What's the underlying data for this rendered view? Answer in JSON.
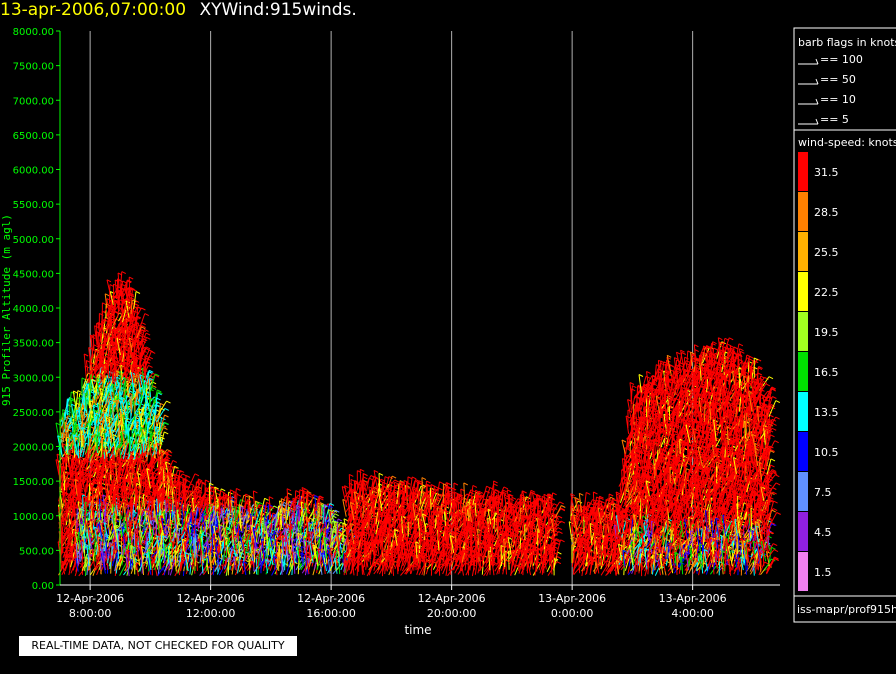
{
  "header": {
    "timestamp": "13-apr-2006,07:00:00",
    "title": "XYWind:915winds."
  },
  "qc_notice": "REAL-TIME DATA, NOT CHECKED FOR QUALITY",
  "legend": {
    "barb_title": "barb flags in knots",
    "barbs": [
      "== 100",
      "== 50",
      "== 10",
      "== 5"
    ],
    "speed_title": "wind-speed: knots",
    "colors": [
      {
        "label": "31.5",
        "color": "#ff0000"
      },
      {
        "label": "28.5",
        "color": "#ff8000"
      },
      {
        "label": "25.5",
        "color": "#ffb000"
      },
      {
        "label": "22.5",
        "color": "#ffff00"
      },
      {
        "label": "19.5",
        "color": "#a0ff20"
      },
      {
        "label": "16.5",
        "color": "#00e000"
      },
      {
        "label": "13.5",
        "color": "#00ffff"
      },
      {
        "label": "10.5",
        "color": "#0000ff"
      },
      {
        "label": "7.5",
        "color": "#6090ff"
      },
      {
        "label": "4.5",
        "color": "#9020e0"
      },
      {
        "label": "1.5",
        "color": "#f080f0"
      }
    ],
    "source": "iss-mapr/prof915h"
  },
  "chart_data": {
    "type": "scatter",
    "title": "XYWind:915winds.",
    "xlabel": "time",
    "ylabel": "915 Profiler Altitude (m agl)",
    "ylim": [
      0,
      8000
    ],
    "yticks": [
      "0.00",
      "500.00",
      "1000.00",
      "1500.00",
      "2000.00",
      "2500.00",
      "3000.00",
      "3500.00",
      "4000.00",
      "4500.00",
      "5000.00",
      "5500.00",
      "6000.00",
      "6500.00",
      "7000.00",
      "7500.00",
      "8000.00"
    ],
    "xticks": [
      {
        "date": "12-Apr-2006",
        "time": "8:00:00"
      },
      {
        "date": "12-Apr-2006",
        "time": "12:00:00"
      },
      {
        "date": "12-Apr-2006",
        "time": "16:00:00"
      },
      {
        "date": "12-Apr-2006",
        "time": "20:00:00"
      },
      {
        "date": "13-Apr-2006",
        "time": "0:00:00"
      },
      {
        "date": "13-Apr-2006",
        "time": "4:00:00"
      }
    ],
    "xrange_hours": [
      7,
      30.9
    ],
    "grid": "vertical lines at x ticks",
    "series": [
      {
        "hours": [
          7.0,
          7.6,
          7.8,
          8.0,
          8.3,
          8.6,
          9.0,
          9.3,
          9.6,
          9.9,
          10.3
        ],
        "top_m": [
          2400,
          2600,
          2900,
          3300,
          3700,
          4100,
          4300,
          4200,
          3700,
          3000,
          2300
        ]
      },
      {
        "hours": [
          10.3,
          11.0,
          12.0,
          13.0,
          14.0,
          15.0,
          16.0,
          16.5
        ],
        "top_m": [
          1800,
          1400,
          1200,
          1100,
          1000,
          1200,
          900,
          600
        ]
      },
      {
        "hours": [
          16.5,
          17.0,
          18.0,
          19.0,
          20.0,
          21.0,
          22.0,
          23.0,
          23.5
        ],
        "top_m": [
          1300,
          1400,
          1350,
          1300,
          1200,
          1200,
          1150,
          1150,
          1100
        ]
      },
      {
        "hours": [
          24.0,
          25.0,
          25.6
        ],
        "top_m": [
          1100,
          1100,
          1000
        ]
      },
      {
        "hours": [
          25.5,
          26.0,
          27.0,
          27.5,
          28.0,
          28.6,
          29.0,
          29.5,
          30.0,
          30.3,
          30.6
        ],
        "top_m": [
          1200,
          2700,
          3000,
          3100,
          3200,
          3300,
          3350,
          3200,
          3000,
          2800,
          2500
        ]
      }
    ]
  }
}
